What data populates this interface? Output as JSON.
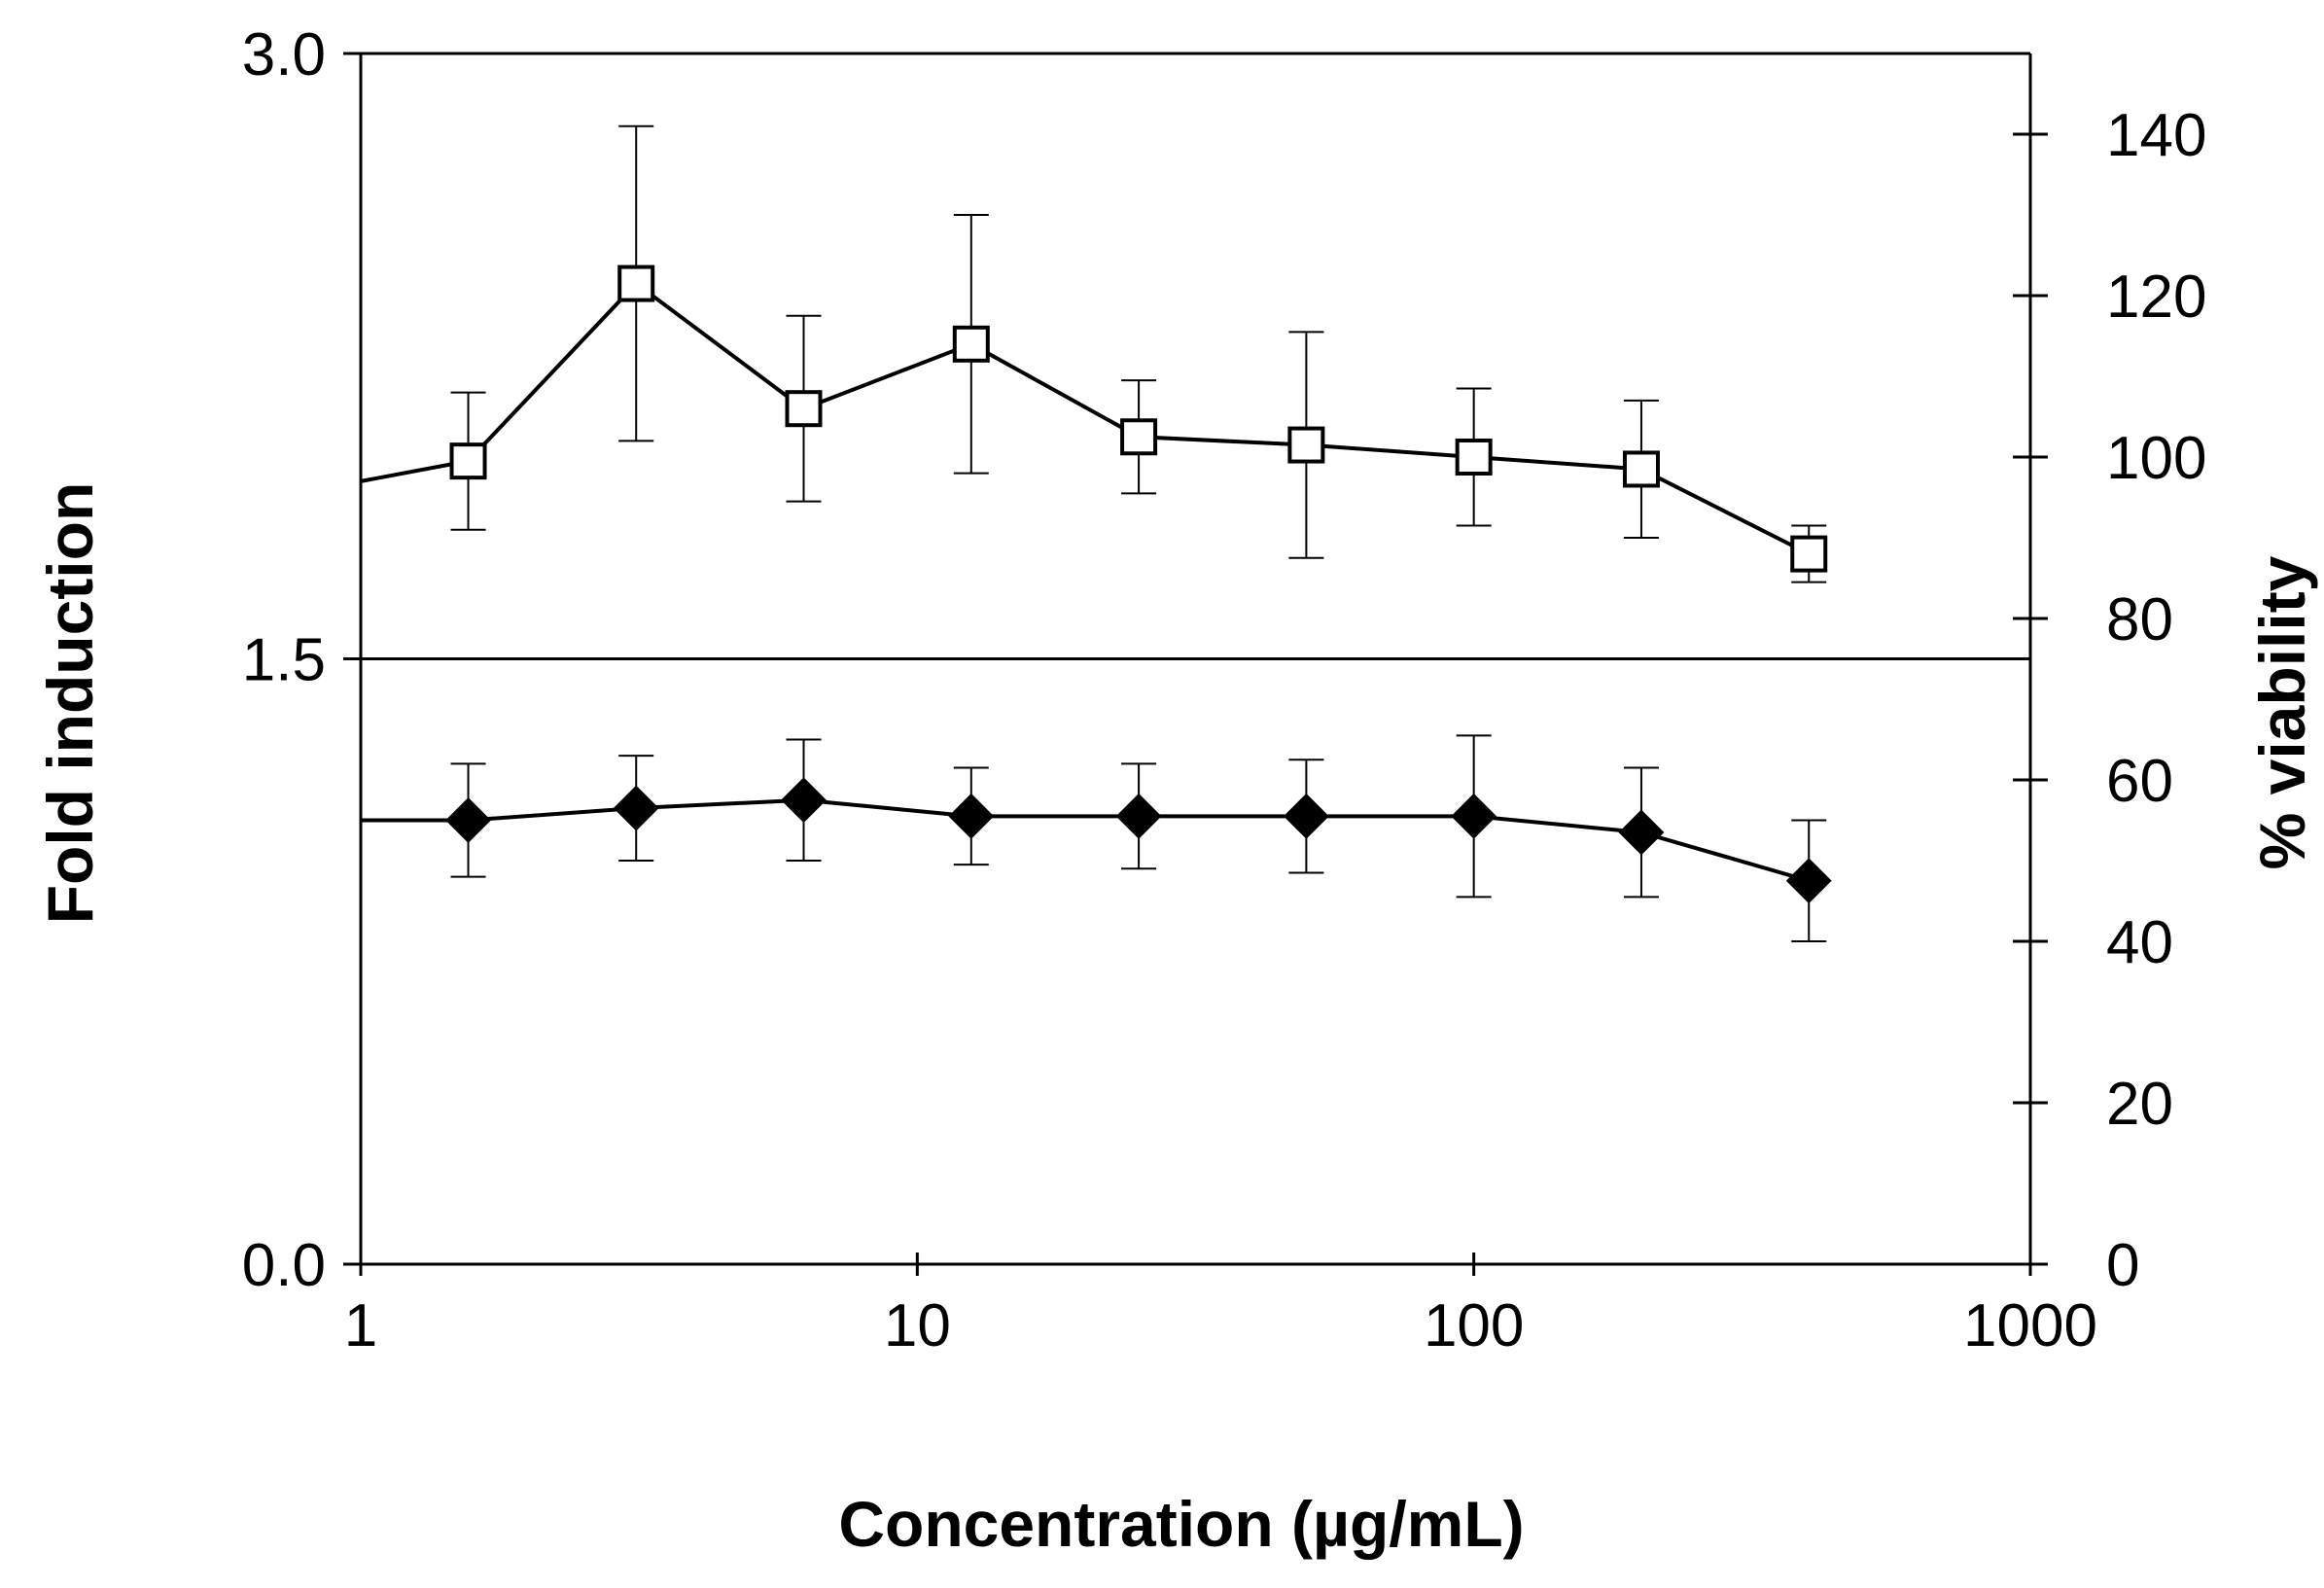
{
  "chart_data": {
    "type": "line",
    "xlabel": "Concentration (µg/mL)",
    "ylabel_left": "Fold induction",
    "ylabel_right": "% viability",
    "x_scale": "log",
    "xlim": [
      1,
      1000
    ],
    "ylim_left": [
      0,
      3
    ],
    "ylim_right": [
      0,
      150
    ],
    "x_ticks": [
      1,
      10,
      100,
      1000
    ],
    "x_tick_labels": [
      "1",
      "10",
      "100",
      "1000"
    ],
    "y_left_ticks": [
      0,
      1.5,
      3
    ],
    "y_left_tick_labels": [
      "0.0",
      "1.5",
      "3.0"
    ],
    "y_right_ticks": [
      0,
      20,
      40,
      60,
      80,
      100,
      120,
      140
    ],
    "y_right_tick_labels": [
      "0",
      "20",
      "40",
      "60",
      "80",
      "100",
      "120",
      "140"
    ],
    "reference_line": {
      "axis": "left",
      "y": 1.5
    },
    "grid": false,
    "series": [
      {
        "axis": "right",
        "marker": "open-square",
        "line_start": {
          "x": 1,
          "y": 97
        },
        "x": [
          1.56,
          3.125,
          6.25,
          12.5,
          25,
          50,
          100,
          200,
          400
        ],
        "y": [
          99.5,
          121.5,
          106,
          114,
          102.5,
          101.5,
          100,
          98.5,
          88
        ],
        "err": [
          8.5,
          19.5,
          11.5,
          16,
          7,
          14,
          8.5,
          8.5,
          3.5
        ]
      },
      {
        "axis": "right",
        "marker": "filled-diamond",
        "line_start": {
          "x": 1,
          "y": 55
        },
        "x": [
          1.56,
          3.125,
          6.25,
          12.5,
          25,
          50,
          100,
          200,
          400
        ],
        "y": [
          55,
          56.5,
          57.5,
          55.5,
          55.5,
          55.5,
          55.5,
          53.5,
          47.5
        ],
        "err": [
          7,
          6.5,
          7.5,
          6,
          6.5,
          7,
          10,
          8,
          7.5
        ]
      }
    ]
  }
}
